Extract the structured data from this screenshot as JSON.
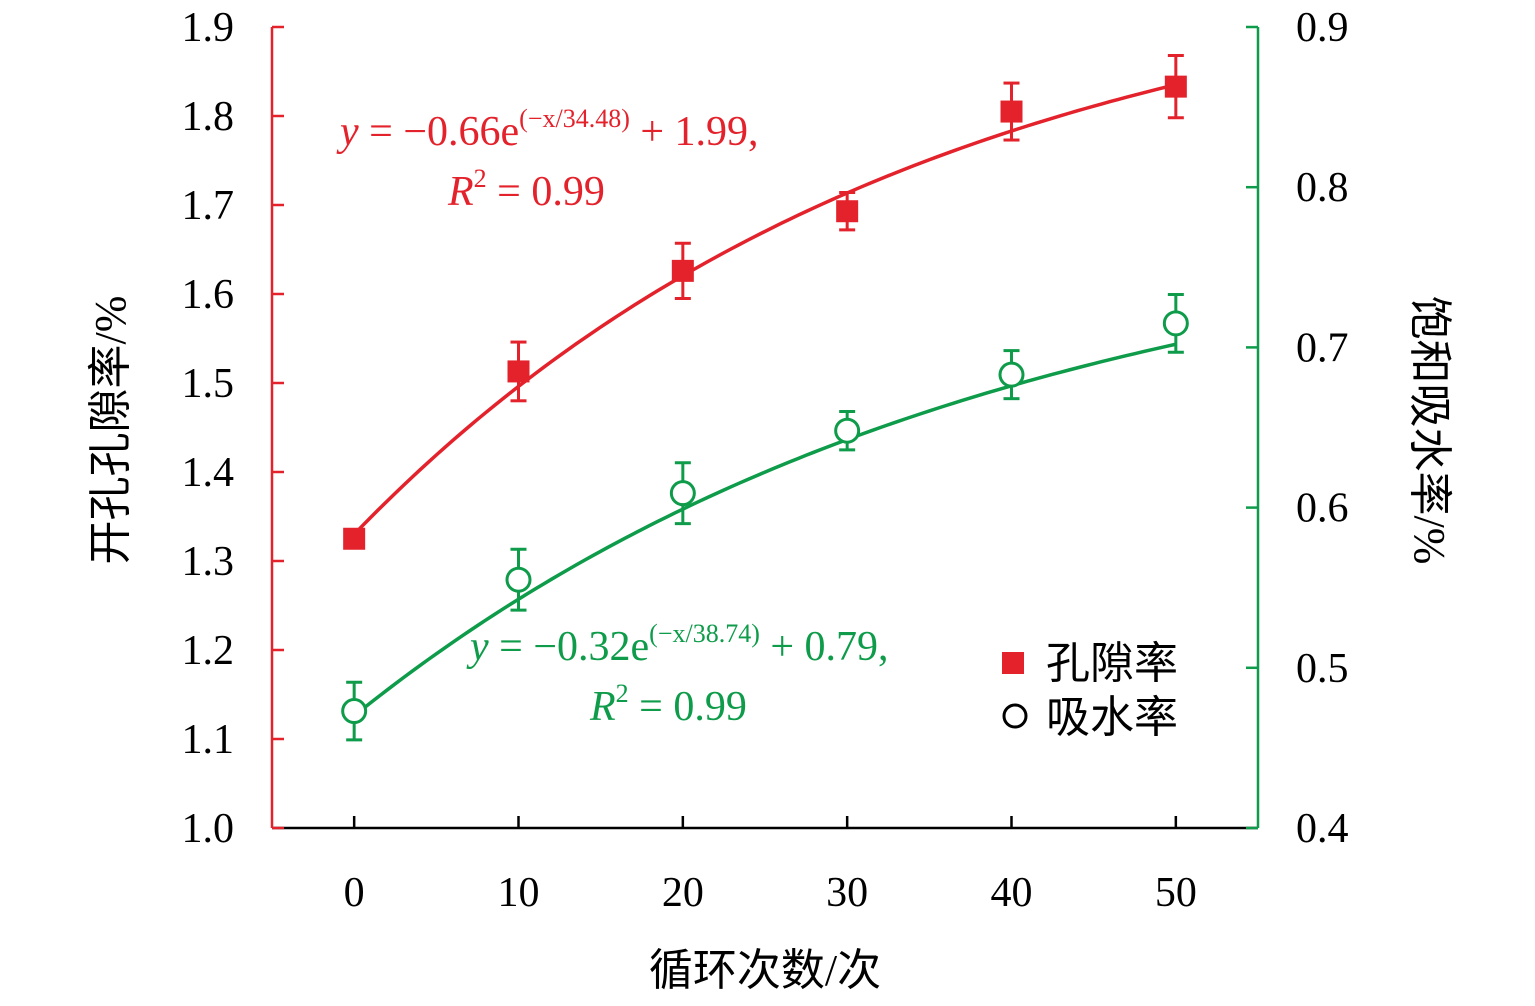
{
  "colors": {
    "porosity": "#e3222b",
    "absorption": "#0e9b4a",
    "axis_x": "#000000"
  },
  "chart_data": {
    "type": "scatter",
    "x": [
      0,
      10,
      20,
      30,
      40,
      50
    ],
    "xlabel": "循环次数/次",
    "xlim": [
      -5,
      55
    ],
    "xticks": [
      "0",
      "10",
      "20",
      "30",
      "40",
      "50"
    ],
    "y_left": {
      "label": "开孔孔隙率/%",
      "ylim": [
        1.0,
        1.9
      ],
      "ticks": [
        "1.0",
        "1.1",
        "1.2",
        "1.3",
        "1.4",
        "1.5",
        "1.6",
        "1.7",
        "1.8",
        "1.9"
      ]
    },
    "y_right": {
      "label": "饱和吸水率/%",
      "ylim": [
        0.4,
        0.9
      ],
      "ticks": [
        "0.4",
        "0.5",
        "0.6",
        "0.7",
        "0.8",
        "0.9"
      ]
    },
    "series": [
      {
        "name": "孔隙率",
        "axis": "left",
        "marker": "filled-square",
        "values": [
          1.325,
          1.513,
          1.626,
          1.693,
          1.805,
          1.833
        ],
        "errors": [
          0.01,
          0.033,
          0.031,
          0.021,
          0.032,
          0.035
        ],
        "fit": {
          "a": -0.66,
          "t": 34.48,
          "c": 1.99
        },
        "equation": {
          "y": "y",
          "lhs": " = −0.66e",
          "sup": "(−x/34.48)",
          "rhs": " + 1.99,",
          "r": "R",
          "r_sup": "2",
          "r_rhs": " = 0.99"
        }
      },
      {
        "name": "吸水率",
        "axis": "right",
        "marker": "open-circle",
        "values": [
          0.473,
          0.555,
          0.609,
          0.648,
          0.683,
          0.715
        ],
        "errors": [
          0.018,
          0.019,
          0.019,
          0.012,
          0.015,
          0.018
        ],
        "fit": {
          "a": -0.32,
          "t": 38.74,
          "c": 0.79
        },
        "equation": {
          "y": "y",
          "lhs": " = −0.32e",
          "sup": "(−x/38.74)",
          "rhs": " + 0.79,",
          "r": "R",
          "r_sup": "2",
          "r_rhs": " = 0.99"
        }
      }
    ],
    "legend": {
      "position": "bottom-right",
      "items": [
        "孔隙率",
        "吸水率"
      ]
    },
    "grid": false
  }
}
